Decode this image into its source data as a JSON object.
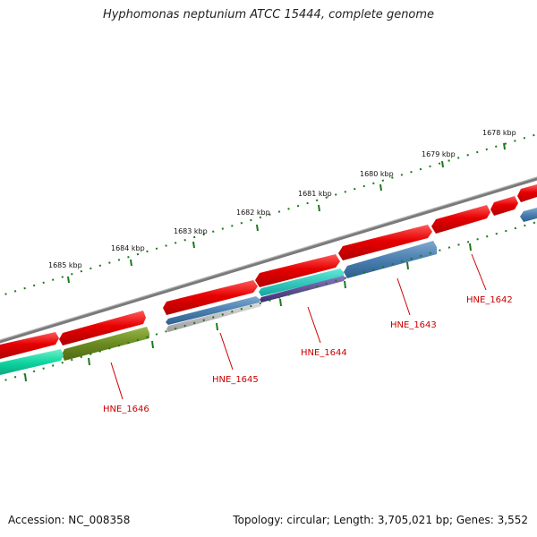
{
  "title": "Hyphomonas neptunium ATCC 15444, complete genome",
  "footer": {
    "accession": "Accession: NC_008358",
    "stats": "Topology: circular; Length: 3,705,021 bp; Genes: 3,552"
  },
  "scale_labels": [
    "1678 kbp",
    "1679 kbp",
    "1680 kbp",
    "1681 kbp",
    "1682 kbp",
    "1683 kbp",
    "1684 kbp",
    "1685 kbp"
  ],
  "gene_labels": [
    "HNE_1642",
    "HNE_1643",
    "HNE_1644",
    "HNE_1645",
    "HNE_1646"
  ],
  "colors": {
    "forward_cds": "#e00000",
    "reverse_blue": "#4a7fb0",
    "reverse_teal": "#20c0a0",
    "reverse_purple": "#5a4a90",
    "reverse_olive": "#6b8a20",
    "reverse_mint": "#10d6a0",
    "reverse_gray": "#b4b4b4",
    "backbone": "#7a7a7a",
    "tick": "#1a7a1a",
    "label": "#cc0000"
  }
}
